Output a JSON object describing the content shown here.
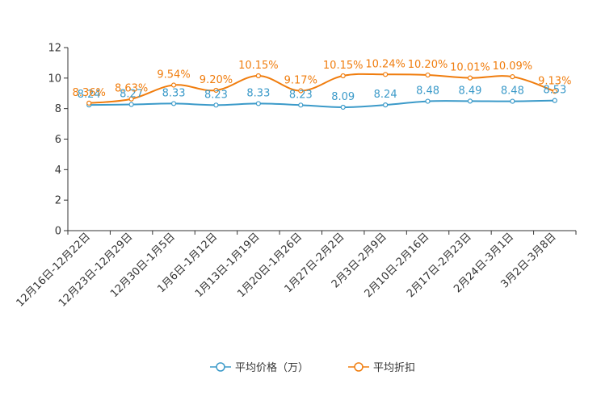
{
  "chart_data": {
    "type": "line",
    "title": "",
    "xlabel": "",
    "ylabel": "",
    "ylim": [
      0,
      12
    ],
    "yticks": [
      0,
      2,
      4,
      6,
      8,
      10,
      12
    ],
    "categories": [
      "12月16日-12月22日",
      "12月23日-12月29日",
      "12月30日-1月5日",
      "1月6日-1月12日",
      "1月13日-1月19日",
      "1月20日-1月26日",
      "1月27日-2月2日",
      "2月3日-2月9日",
      "2月10日-2月16日",
      "2月17日-2月23日",
      "2月24日-3月1日",
      "3月2日-3月8日"
    ],
    "series": [
      {
        "name": "平均价格（万）",
        "color": "#3b9ac9",
        "values": [
          8.24,
          8.27,
          8.33,
          8.23,
          8.33,
          8.23,
          8.09,
          8.24,
          8.48,
          8.49,
          8.48,
          8.53
        ],
        "labels": [
          "8.24",
          "8.27",
          "8.33",
          "8.23",
          "8.33",
          "8.23",
          "8.09",
          "8.24",
          "8.48",
          "8.49",
          "8.48",
          "8.53"
        ]
      },
      {
        "name": "平均折扣",
        "color": "#f07d0e",
        "values": [
          8.36,
          8.63,
          9.54,
          9.2,
          10.15,
          9.17,
          10.15,
          10.24,
          10.2,
          10.01,
          10.09,
          9.13
        ],
        "labels": [
          "8.36%",
          "8.63%",
          "9.54%",
          "9.20%",
          "10.15%",
          "9.17%",
          "10.15%",
          "10.24%",
          "10.20%",
          "10.01%",
          "10.09%",
          "9.13%"
        ]
      }
    ],
    "legend_position": "bottom-center",
    "grid": false
  }
}
